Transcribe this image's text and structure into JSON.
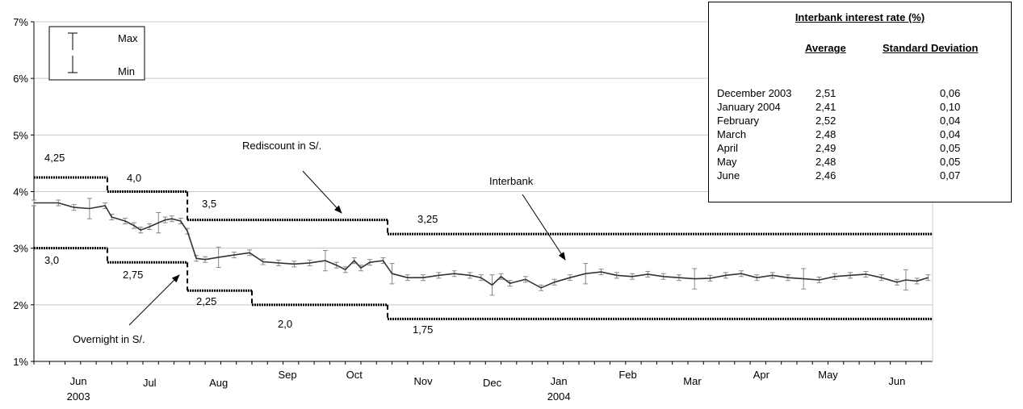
{
  "chart_data": {
    "type": "line",
    "y_axis": {
      "ticks": [
        "1%",
        "2%",
        "3%",
        "4%",
        "5%",
        "6%",
        "7%"
      ],
      "ylim": [
        1,
        7
      ],
      "unit": "%"
    },
    "x_axis": {
      "months": [
        "Jun",
        "Jul",
        "Aug",
        "Sep",
        "Oct",
        "Nov",
        "Dec",
        "Jan",
        "Feb",
        "Mar",
        "Apr",
        "May",
        "Jun"
      ],
      "years": [
        "2003",
        "2004"
      ]
    },
    "legend": {
      "max_label": "Max",
      "min_label": "Min",
      "placement": "top-left"
    },
    "step_series": [
      {
        "name": "Rediscount in S/.",
        "label": "Rediscount in S/.",
        "segments": [
          {
            "from": "2003-05-23",
            "to": "2003-06-25",
            "value": 4.25,
            "label": "4,25"
          },
          {
            "from": "2003-06-25",
            "to": "2003-07-31",
            "value": 4.0,
            "label": "4,0"
          },
          {
            "from": "2003-07-31",
            "to": "2003-10-29",
            "value": 3.5,
            "label": "3,5"
          },
          {
            "from": "2003-10-29",
            "to": "2004-06-30",
            "value": 3.25,
            "label": "3,25"
          }
        ]
      },
      {
        "name": "Overnight in S/.",
        "label": "Overnight in S/.",
        "segments": [
          {
            "from": "2003-05-23",
            "to": "2003-06-25",
            "value": 3.0,
            "label": "3,0"
          },
          {
            "from": "2003-06-25",
            "to": "2003-07-31",
            "value": 2.75,
            "label": "2,75"
          },
          {
            "from": "2003-07-31",
            "to": "2003-08-29",
            "value": 2.25,
            "label": "2,25"
          },
          {
            "from": "2003-08-29",
            "to": "2003-10-29",
            "value": 2.0,
            "label": "2,0"
          },
          {
            "from": "2003-10-29",
            "to": "2004-06-30",
            "value": 1.75,
            "label": "1,75"
          }
        ]
      }
    ],
    "interbank": {
      "name": "Interbank",
      "label": "Interbank",
      "points": [
        [
          "2003-05-23",
          3.8
        ],
        [
          "2003-06-03",
          3.8
        ],
        [
          "2003-06-10",
          3.72
        ],
        [
          "2003-06-17",
          3.7
        ],
        [
          "2003-06-24",
          3.75
        ],
        [
          "2003-06-27",
          3.55
        ],
        [
          "2003-07-03",
          3.48
        ],
        [
          "2003-07-07",
          3.4
        ],
        [
          "2003-07-10",
          3.32
        ],
        [
          "2003-07-14",
          3.38
        ],
        [
          "2003-07-18",
          3.45
        ],
        [
          "2003-07-21",
          3.5
        ],
        [
          "2003-07-24",
          3.52
        ],
        [
          "2003-07-28",
          3.48
        ],
        [
          "2003-07-31",
          3.3
        ],
        [
          "2003-08-04",
          2.82
        ],
        [
          "2003-08-08",
          2.8
        ],
        [
          "2003-08-14",
          2.84
        ],
        [
          "2003-08-21",
          2.88
        ],
        [
          "2003-08-28",
          2.92
        ],
        [
          "2003-09-03",
          2.76
        ],
        [
          "2003-09-10",
          2.74
        ],
        [
          "2003-09-17",
          2.72
        ],
        [
          "2003-09-24",
          2.74
        ],
        [
          "2003-10-01",
          2.78
        ],
        [
          "2003-10-06",
          2.7
        ],
        [
          "2003-10-10",
          2.62
        ],
        [
          "2003-10-14",
          2.78
        ],
        [
          "2003-10-17",
          2.65
        ],
        [
          "2003-10-21",
          2.75
        ],
        [
          "2003-10-27",
          2.78
        ],
        [
          "2003-10-31",
          2.55
        ],
        [
          "2003-11-07",
          2.48
        ],
        [
          "2003-11-14",
          2.48
        ],
        [
          "2003-11-21",
          2.52
        ],
        [
          "2003-11-28",
          2.55
        ],
        [
          "2003-12-05",
          2.52
        ],
        [
          "2003-12-10",
          2.48
        ],
        [
          "2003-12-15",
          2.35
        ],
        [
          "2003-12-19",
          2.5
        ],
        [
          "2003-12-23",
          2.38
        ],
        [
          "2003-12-30",
          2.45
        ],
        [
          "2004-01-06",
          2.3
        ],
        [
          "2004-01-12",
          2.4
        ],
        [
          "2004-01-19",
          2.48
        ],
        [
          "2004-01-26",
          2.55
        ],
        [
          "2004-02-02",
          2.58
        ],
        [
          "2004-02-09",
          2.52
        ],
        [
          "2004-02-16",
          2.5
        ],
        [
          "2004-02-23",
          2.54
        ],
        [
          "2004-03-01",
          2.5
        ],
        [
          "2004-03-08",
          2.48
        ],
        [
          "2004-03-15",
          2.46
        ],
        [
          "2004-03-22",
          2.47
        ],
        [
          "2004-03-29",
          2.52
        ],
        [
          "2004-04-05",
          2.55
        ],
        [
          "2004-04-12",
          2.48
        ],
        [
          "2004-04-19",
          2.52
        ],
        [
          "2004-04-26",
          2.48
        ],
        [
          "2004-05-03",
          2.46
        ],
        [
          "2004-05-10",
          2.44
        ],
        [
          "2004-05-17",
          2.5
        ],
        [
          "2004-05-24",
          2.52
        ],
        [
          "2004-05-31",
          2.54
        ],
        [
          "2004-06-07",
          2.48
        ],
        [
          "2004-06-14",
          2.4
        ],
        [
          "2004-06-18",
          2.44
        ],
        [
          "2004-06-23",
          2.42
        ],
        [
          "2004-06-28",
          2.48
        ]
      ]
    }
  },
  "table": {
    "title": "Interbank interest rate (%)",
    "col_average": "Average",
    "col_sd": "Standard Deviation",
    "rows": [
      {
        "month": "December 2003",
        "average": "2,51",
        "sd": "0,06"
      },
      {
        "month": "January 2004",
        "average": "2,41",
        "sd": "0,10"
      },
      {
        "month": "February",
        "average": "2,52",
        "sd": "0,04"
      },
      {
        "month": "March",
        "average": "2,48",
        "sd": "0,04"
      },
      {
        "month": "April",
        "average": "2,49",
        "sd": "0,05"
      },
      {
        "month": "May",
        "average": "2,48",
        "sd": "0,05"
      },
      {
        "month": "June",
        "average": "2,46",
        "sd": "0,07"
      }
    ]
  }
}
